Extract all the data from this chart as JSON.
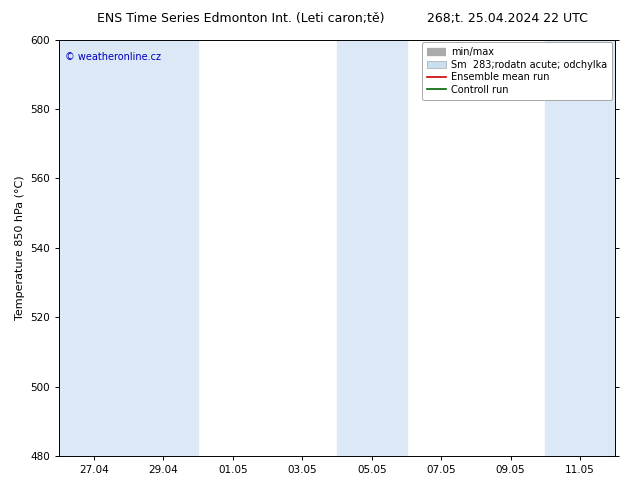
{
  "title_left": "ENS Time Series Edmonton Int. (Leti caron;tě)",
  "title_right": "268;t. 25.04.2024 22 UTC",
  "ylabel": "Temperature 850 hPa (°C)",
  "watermark": "© weatheronline.cz",
  "ylim": [
    480,
    600
  ],
  "yticks": [
    480,
    500,
    520,
    540,
    560,
    580,
    600
  ],
  "xtick_labels": [
    "27.04",
    "29.04",
    "01.05",
    "03.05",
    "05.05",
    "07.05",
    "09.05",
    "11.05"
  ],
  "shaded_color": "#dce8f5",
  "bg_color": "#ffffff",
  "title_fontsize": 9,
  "tick_fontsize": 7.5,
  "label_fontsize": 8,
  "watermark_color": "#0000bb",
  "legend_fontsize": 7,
  "grid_color": "#cccccc"
}
